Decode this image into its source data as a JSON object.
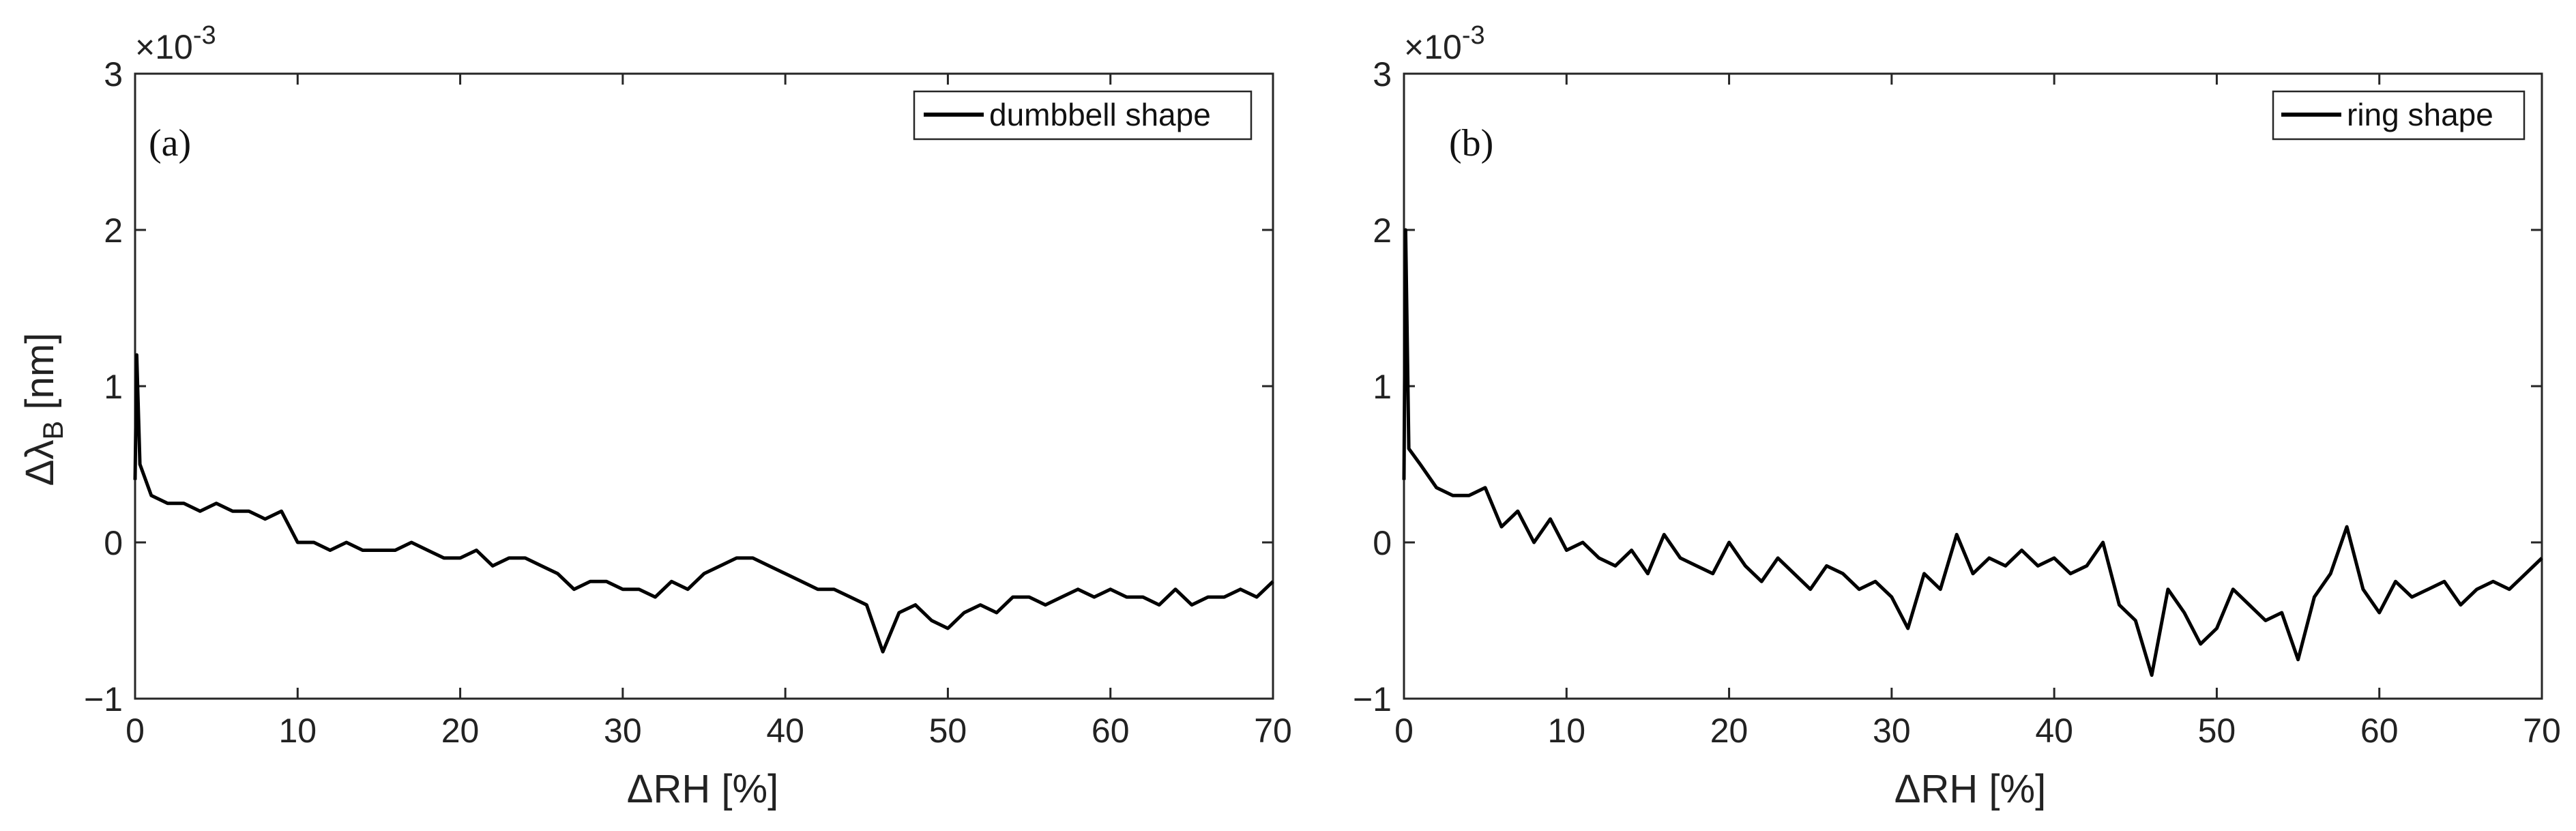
{
  "chart_data": [
    {
      "type": "line",
      "panel_label": "(a)",
      "xlabel": "ΔRH [%]",
      "ylabel_main": "Δλ",
      "ylabel_sub": "B",
      "ylabel_unit": " [nm]",
      "y_exponent_base": "×10",
      "y_exponent_power": "-3",
      "xlim": [
        0,
        70
      ],
      "ylim": [
        -1,
        3
      ],
      "x_ticks": [
        "0",
        "10",
        "20",
        "30",
        "40",
        "50",
        "60",
        "70"
      ],
      "y_ticks": [
        "−1",
        "0",
        "1",
        "2",
        "3"
      ],
      "legend_position": "top-right",
      "grid": false,
      "series": [
        {
          "name": "dumbbell shape",
          "color": "#000000",
          "x": [
            0,
            0.1,
            0.3,
            1,
            2,
            3,
            4,
            5,
            6,
            7,
            8,
            9,
            10,
            11,
            12,
            13,
            14,
            15,
            16,
            17,
            18,
            19,
            20,
            21,
            22,
            23,
            24,
            25,
            26,
            27,
            28,
            29,
            30,
            31,
            32,
            33,
            34,
            35,
            36,
            37,
            38,
            39,
            40,
            41,
            42,
            43,
            44,
            45,
            46,
            47,
            48,
            49,
            50,
            51,
            52,
            53,
            54,
            55,
            56,
            57,
            58,
            59,
            60,
            61,
            62,
            63,
            64,
            65,
            66,
            67,
            68,
            69,
            70
          ],
          "y": [
            0.4,
            1.2,
            0.5,
            0.3,
            0.25,
            0.25,
            0.2,
            0.25,
            0.2,
            0.2,
            0.15,
            0.2,
            0.0,
            0.0,
            -0.05,
            0.0,
            -0.05,
            -0.05,
            -0.05,
            0.0,
            -0.05,
            -0.1,
            -0.1,
            -0.05,
            -0.15,
            -0.1,
            -0.1,
            -0.15,
            -0.2,
            -0.3,
            -0.25,
            -0.25,
            -0.3,
            -0.3,
            -0.35,
            -0.25,
            -0.3,
            -0.2,
            -0.15,
            -0.1,
            -0.1,
            -0.15,
            -0.2,
            -0.25,
            -0.3,
            -0.3,
            -0.35,
            -0.4,
            -0.7,
            -0.45,
            -0.4,
            -0.5,
            -0.55,
            -0.45,
            -0.4,
            -0.45,
            -0.35,
            -0.35,
            -0.4,
            -0.35,
            -0.3,
            -0.35,
            -0.3,
            -0.35,
            -0.35,
            -0.4,
            -0.3,
            -0.4,
            -0.35,
            -0.35,
            -0.3,
            -0.35,
            -0.25
          ]
        }
      ]
    },
    {
      "type": "line",
      "panel_label": "(b)",
      "xlabel": "ΔRH [%]",
      "y_exponent_base": "×10",
      "y_exponent_power": "-3",
      "xlim": [
        0,
        70
      ],
      "ylim": [
        -1,
        3
      ],
      "x_ticks": [
        "0",
        "10",
        "20",
        "30",
        "40",
        "50",
        "60",
        "70"
      ],
      "y_ticks": [
        "−1",
        "0",
        "1",
        "2",
        "3"
      ],
      "legend_position": "top-right",
      "grid": false,
      "series": [
        {
          "name": "ring shape",
          "color": "#000000",
          "x": [
            0,
            0.1,
            0.3,
            1,
            2,
            3,
            4,
            5,
            6,
            7,
            8,
            9,
            10,
            11,
            12,
            13,
            14,
            15,
            16,
            17,
            18,
            19,
            20,
            21,
            22,
            23,
            24,
            25,
            26,
            27,
            28,
            29,
            30,
            31,
            32,
            33,
            34,
            35,
            36,
            37,
            38,
            39,
            40,
            41,
            42,
            43,
            44,
            45,
            46,
            47,
            48,
            49,
            50,
            51,
            52,
            53,
            54,
            55,
            56,
            57,
            58,
            59,
            60,
            61,
            62,
            63,
            64,
            65,
            66,
            67,
            68,
            69,
            70
          ],
          "y": [
            0.4,
            2.0,
            0.6,
            0.5,
            0.35,
            0.3,
            0.3,
            0.35,
            0.1,
            0.2,
            0.0,
            0.15,
            -0.05,
            0.0,
            -0.1,
            -0.15,
            -0.05,
            -0.2,
            0.05,
            -0.1,
            -0.15,
            -0.2,
            0.0,
            -0.15,
            -0.25,
            -0.1,
            -0.2,
            -0.3,
            -0.15,
            -0.2,
            -0.3,
            -0.25,
            -0.35,
            -0.55,
            -0.2,
            -0.3,
            0.05,
            -0.2,
            -0.1,
            -0.15,
            -0.05,
            -0.15,
            -0.1,
            -0.2,
            -0.15,
            0.0,
            -0.4,
            -0.5,
            -0.85,
            -0.3,
            -0.45,
            -0.65,
            -0.55,
            -0.3,
            -0.4,
            -0.5,
            -0.45,
            -0.75,
            -0.35,
            -0.2,
            0.1,
            -0.3,
            -0.45,
            -0.25,
            -0.35,
            -0.3,
            -0.25,
            -0.4,
            -0.3,
            -0.25,
            -0.3,
            -0.2,
            -0.1
          ]
        }
      ]
    }
  ]
}
